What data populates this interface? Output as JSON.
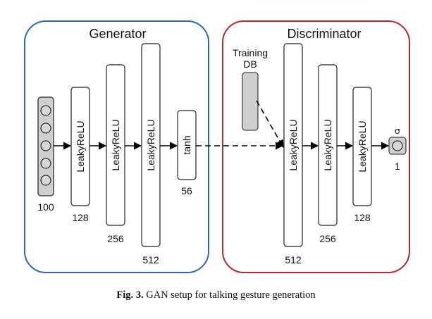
{
  "generator": {
    "title": "Generator",
    "input_size": "100",
    "layers": [
      {
        "label": "LeakyReLU",
        "size": "128"
      },
      {
        "label": "LeakyReLU",
        "size": "256"
      },
      {
        "label": "LeakyReLU",
        "size": "512"
      },
      {
        "label": "tanh",
        "size": "56"
      }
    ]
  },
  "discriminator": {
    "title": "Discriminator",
    "training_db": [
      "Training",
      "DB"
    ],
    "layers": [
      {
        "label": "LeakyReLU",
        "size": "512"
      },
      {
        "label": "LeakyReLU",
        "size": "256"
      },
      {
        "label": "LeakyReLU",
        "size": "128"
      }
    ],
    "output_activation": "σ",
    "output_size": "1"
  },
  "caption": {
    "prefix": "Fig. 3.",
    "text": "GAN setup for talking gesture generation"
  },
  "colors": {
    "generator_border": "#2e6aa8",
    "generator_title": "#2e6aa8",
    "discriminator_border": "#b02a2f",
    "discriminator_title": "#b02a2f",
    "input_fill": "#cfcfcf",
    "arrow": "#000000"
  }
}
